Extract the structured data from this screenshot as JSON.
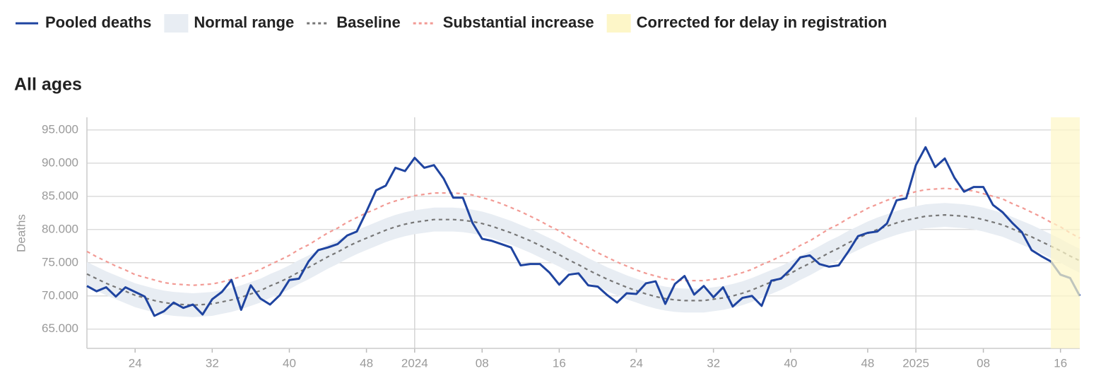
{
  "chart_data": {
    "type": "line",
    "title": "All ages",
    "y_label": "Deaths",
    "categories": [
      null,
      null,
      null,
      null,
      null,
      "24",
      null,
      null,
      null,
      null,
      null,
      null,
      null,
      "32",
      null,
      null,
      null,
      null,
      null,
      null,
      null,
      "40",
      null,
      null,
      null,
      null,
      null,
      null,
      null,
      "48",
      null,
      null,
      null,
      null,
      "2024",
      null,
      null,
      null,
      null,
      null,
      null,
      "08",
      null,
      null,
      null,
      null,
      null,
      null,
      null,
      "16",
      null,
      null,
      null,
      null,
      null,
      null,
      null,
      "24",
      null,
      null,
      null,
      null,
      null,
      null,
      null,
      "32",
      null,
      null,
      null,
      null,
      null,
      null,
      null,
      "40",
      null,
      null,
      null,
      null,
      null,
      null,
      null,
      "48",
      null,
      null,
      null,
      null,
      "2025",
      null,
      null,
      null,
      null,
      null,
      null,
      "08",
      null,
      null,
      null,
      null,
      null,
      null,
      null,
      "16",
      null,
      null
    ],
    "series": [
      {
        "name": "Pooled deaths",
        "color": "#1f44a0",
        "values": [
          71500,
          70700,
          71300,
          69900,
          71300,
          70600,
          69900,
          67000,
          67700,
          69000,
          68200,
          68700,
          67200,
          69500,
          70600,
          72400,
          67900,
          71600,
          69600,
          68700,
          70100,
          72400,
          72600,
          75200,
          76900,
          77300,
          77800,
          79100,
          79700,
          82700,
          85900,
          86600,
          89300,
          88800,
          90800,
          89300,
          89700,
          87700,
          84800,
          84800,
          81000,
          78600,
          78300,
          77800,
          77300,
          74600,
          74800,
          74800,
          73500,
          71700,
          73200,
          73400,
          71600,
          71400,
          70100,
          69000,
          70400,
          70300,
          71900,
          72200,
          68800,
          71800,
          73000,
          70200,
          71500,
          69800,
          71300,
          68400,
          69700,
          70000,
          68500,
          72300,
          72600,
          74000,
          75800,
          76100,
          74800,
          74400,
          74600,
          76700,
          79000,
          79500,
          79700,
          80900,
          84400,
          84700,
          89700,
          92400,
          89400,
          90700,
          87800,
          85700,
          86400,
          86400,
          83700,
          82600,
          81000,
          79600,
          76900,
          76000,
          75200,
          73200,
          72700,
          70000
        ]
      },
      {
        "name": "Normal range",
        "color": "#e8edf3",
        "lower": [
          71500,
          70800,
          70100,
          69500,
          68900,
          68300,
          67900,
          67500,
          67200,
          67000,
          66900,
          66800,
          66900,
          67000,
          67300,
          67600,
          68000,
          68500,
          69000,
          69700,
          70300,
          71000,
          71800,
          72500,
          73300,
          74100,
          74800,
          75600,
          76300,
          76900,
          77500,
          78100,
          78600,
          79000,
          79300,
          79500,
          79700,
          79700,
          79700,
          79600,
          79400,
          79100,
          78700,
          78200,
          77700,
          77100,
          76500,
          75800,
          75100,
          74400,
          73600,
          72900,
          72100,
          71400,
          70700,
          70100,
          69500,
          69000,
          68500,
          68100,
          67800,
          67600,
          67500,
          67500,
          67500,
          67700,
          67900,
          68200,
          68600,
          69100,
          69700,
          70300,
          70900,
          71600,
          72400,
          73100,
          73900,
          74700,
          75400,
          76200,
          76900,
          77600,
          78200,
          78700,
          79200,
          79600,
          79900,
          80200,
          80300,
          80400,
          80300,
          80200,
          80000,
          79700,
          79300,
          78900,
          78300,
          77700,
          77100,
          76400,
          75700,
          75000,
          74200,
          73500
        ],
        "upper": [
          75100,
          74400,
          73700,
          73100,
          72500,
          71900,
          71500,
          71100,
          70800,
          70600,
          70500,
          70400,
          70500,
          70600,
          70900,
          71200,
          71600,
          72100,
          72600,
          73300,
          73900,
          74600,
          75400,
          76100,
          76900,
          77700,
          78400,
          79200,
          79900,
          80500,
          81100,
          81700,
          82200,
          82600,
          82900,
          83100,
          83300,
          83300,
          83300,
          83200,
          83000,
          82700,
          82300,
          81800,
          81300,
          80700,
          80100,
          79400,
          78700,
          78000,
          77200,
          76500,
          75700,
          75000,
          74300,
          73700,
          73100,
          72600,
          72100,
          71700,
          71400,
          71200,
          71100,
          71100,
          71100,
          71300,
          71500,
          71800,
          72200,
          72700,
          73300,
          73900,
          74500,
          75200,
          76000,
          76700,
          77500,
          78300,
          79000,
          79800,
          80500,
          81200,
          81800,
          82300,
          82800,
          83200,
          83500,
          83800,
          83900,
          84000,
          83900,
          83800,
          83600,
          83300,
          82900,
          82500,
          81900,
          81300,
          80700,
          80000,
          79300,
          78600,
          77800,
          77100
        ]
      },
      {
        "name": "Baseline",
        "color": "#777777",
        "dash": true,
        "values": [
          73300,
          72600,
          71900,
          71300,
          70700,
          70100,
          69700,
          69300,
          69000,
          68800,
          68700,
          68600,
          68700,
          68800,
          69100,
          69400,
          69800,
          70300,
          70800,
          71500,
          72100,
          72800,
          73600,
          74300,
          75100,
          75900,
          76600,
          77400,
          78100,
          78700,
          79300,
          79900,
          80400,
          80800,
          81100,
          81300,
          81500,
          81500,
          81500,
          81400,
          81200,
          80900,
          80500,
          80000,
          79500,
          78900,
          78300,
          77600,
          76900,
          76200,
          75400,
          74700,
          73900,
          73200,
          72500,
          71900,
          71300,
          70800,
          70300,
          69900,
          69600,
          69400,
          69300,
          69300,
          69300,
          69500,
          69700,
          70000,
          70400,
          70900,
          71500,
          72100,
          72700,
          73400,
          74200,
          74900,
          75700,
          76500,
          77200,
          78000,
          78700,
          79400,
          80000,
          80500,
          81000,
          81400,
          81700,
          82000,
          82100,
          82200,
          82100,
          82000,
          81800,
          81500,
          81100,
          80700,
          80100,
          79500,
          78900,
          78200,
          77500,
          76800,
          76000,
          75300
        ]
      },
      {
        "name": "Substantial increase",
        "color": "#f29a94",
        "dash": true,
        "values": [
          76700,
          75900,
          75200,
          74500,
          73900,
          73200,
          72800,
          72400,
          72000,
          71800,
          71700,
          71600,
          71700,
          71800,
          72100,
          72500,
          72900,
          73400,
          74000,
          74700,
          75400,
          76100,
          77000,
          77700,
          78600,
          79500,
          80200,
          81100,
          81800,
          82500,
          83100,
          83800,
          84300,
          84700,
          85100,
          85300,
          85500,
          85500,
          85500,
          85400,
          85200,
          84800,
          84400,
          83900,
          83300,
          82700,
          82000,
          81300,
          80500,
          79800,
          78900,
          78100,
          77300,
          76500,
          75800,
          75100,
          74500,
          73900,
          73400,
          73000,
          72600,
          72400,
          72300,
          72300,
          72300,
          72500,
          72700,
          73100,
          73500,
          74000,
          74700,
          75300,
          76000,
          76700,
          77600,
          78300,
          79200,
          80100,
          80800,
          81700,
          82400,
          83200,
          83800,
          84400,
          84900,
          85300,
          85700,
          86000,
          86100,
          86200,
          86100,
          86000,
          85800,
          85400,
          85000,
          84600,
          83900,
          83300,
          82600,
          81900,
          81100,
          80400,
          79500,
          78700
        ]
      }
    ],
    "highlight": {
      "name": "Corrected for delay in registration",
      "color": "#fdf6c8",
      "from": 100
    },
    "ylim": [
      62100,
      96900
    ],
    "yticks": [
      {
        "value": 65000,
        "label": "65.000"
      },
      {
        "value": 70000,
        "label": "70.000"
      },
      {
        "value": 75000,
        "label": "75.000"
      },
      {
        "value": 80000,
        "label": "80.000"
      },
      {
        "value": 85000,
        "label": "85.000"
      },
      {
        "value": 90000,
        "label": "90.000"
      },
      {
        "value": 95000,
        "label": "95.000"
      }
    ],
    "grid": true
  }
}
